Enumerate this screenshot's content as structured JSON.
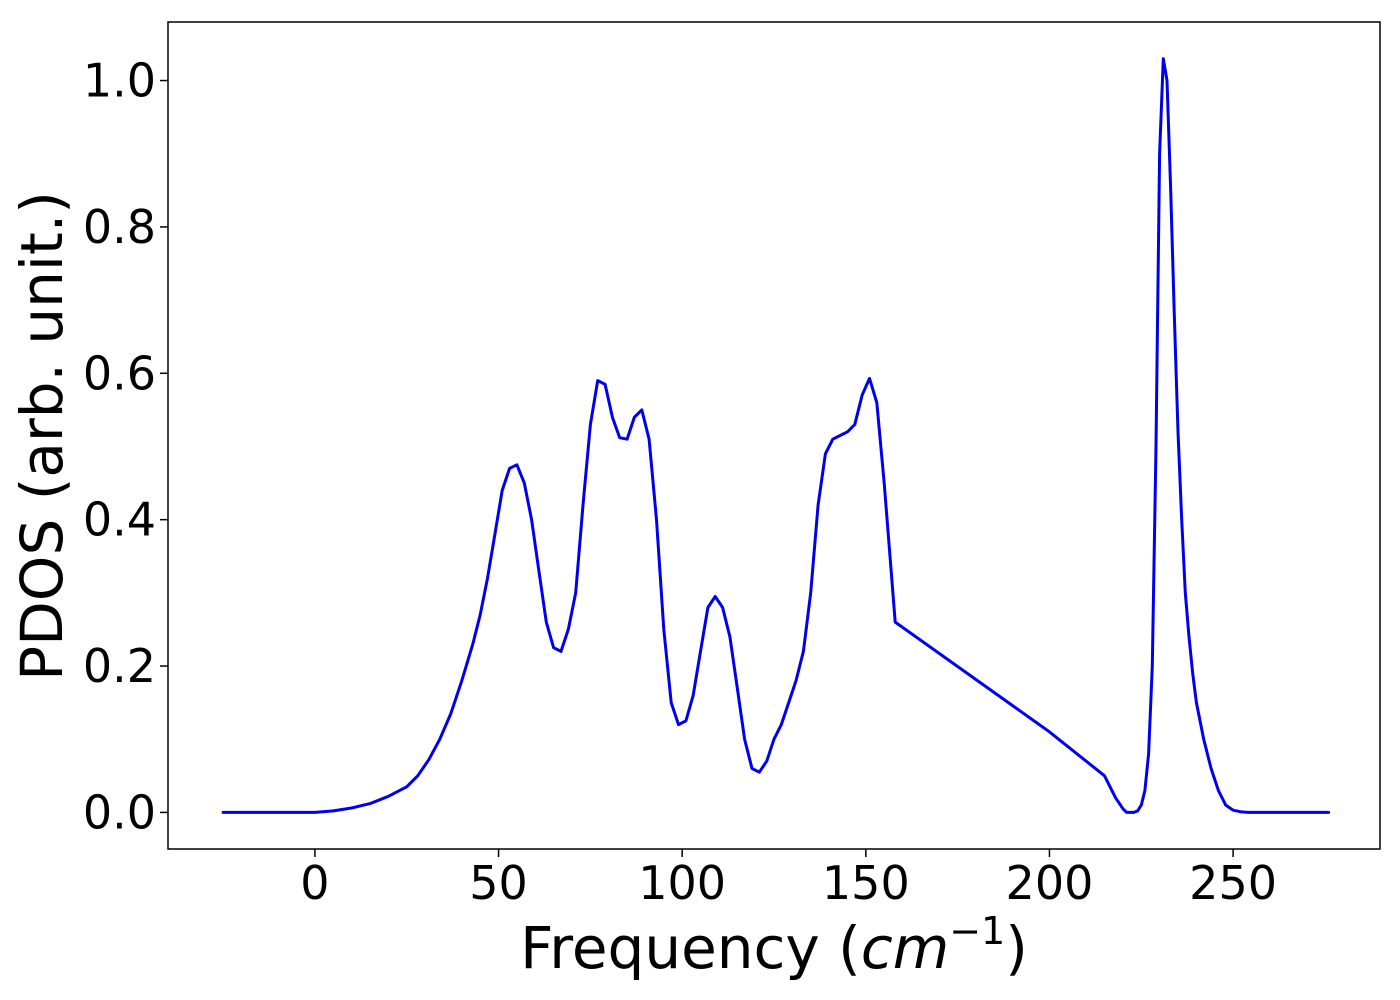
{
  "chart_data": {
    "type": "line",
    "title": "",
    "xlabel_text": "Frequency (",
    "xlabel_unit_base": "cm",
    "xlabel_unit_exp": "−1",
    "xlabel_close": ")",
    "ylabel": "PDOS (arb. unit.)",
    "xlim": [
      -40,
      290
    ],
    "ylim": [
      -0.05,
      1.08
    ],
    "xticks": [
      0,
      50,
      100,
      150,
      200,
      250
    ],
    "yticks": [
      0.0,
      0.2,
      0.4,
      0.6,
      0.8,
      1.0
    ],
    "xtick_labels": [
      "0",
      "50",
      "100",
      "150",
      "200",
      "250"
    ],
    "ytick_labels": [
      "0.0",
      "0.2",
      "0.4",
      "0.6",
      "0.8",
      "1.0"
    ],
    "grid": false,
    "legend": "none",
    "series": [
      {
        "color": "#0000ee",
        "x": [
          -25,
          0,
          5,
          10,
          15,
          20,
          25,
          28,
          31,
          34,
          37,
          40,
          43,
          45,
          47,
          49,
          51,
          53,
          55,
          57,
          59,
          61,
          63,
          65,
          67,
          69,
          71,
          73,
          75,
          77,
          79,
          81,
          83,
          85,
          87,
          89,
          91,
          93,
          95,
          97,
          99,
          101,
          103,
          105,
          107,
          109,
          111,
          113,
          115,
          117,
          119,
          121,
          123,
          125,
          127,
          129,
          131,
          133,
          135,
          137,
          139,
          141,
          143,
          145,
          147,
          149,
          151,
          153,
          155,
          158,
          200,
          215,
          218,
          220,
          221,
          222,
          223,
          224,
          225,
          226,
          227,
          228,
          229,
          230,
          231,
          232,
          233,
          234,
          235,
          236,
          237,
          238,
          239,
          240,
          242,
          244,
          246,
          248,
          250,
          252,
          254,
          256,
          258,
          260,
          276
        ],
        "y": [
          0,
          0,
          0.002,
          0.006,
          0.012,
          0.022,
          0.035,
          0.05,
          0.072,
          0.1,
          0.135,
          0.18,
          0.23,
          0.27,
          0.32,
          0.38,
          0.44,
          0.47,
          0.475,
          0.45,
          0.4,
          0.33,
          0.26,
          0.225,
          0.22,
          0.25,
          0.3,
          0.42,
          0.53,
          0.59,
          0.585,
          0.54,
          0.512,
          0.51,
          0.54,
          0.55,
          0.51,
          0.4,
          0.25,
          0.15,
          0.12,
          0.125,
          0.16,
          0.22,
          0.28,
          0.295,
          0.28,
          0.24,
          0.17,
          0.1,
          0.06,
          0.055,
          0.07,
          0.1,
          0.12,
          0.15,
          0.18,
          0.22,
          0.3,
          0.42,
          0.49,
          0.51,
          0.515,
          0.52,
          0.53,
          0.57,
          0.593,
          0.56,
          0.45,
          0.26,
          0.11,
          0.05,
          0.02,
          0.005,
          0,
          0,
          0,
          0.002,
          0.01,
          0.03,
          0.08,
          0.2,
          0.5,
          0.9,
          1.03,
          1.0,
          0.85,
          0.68,
          0.52,
          0.4,
          0.3,
          0.24,
          0.19,
          0.15,
          0.1,
          0.06,
          0.03,
          0.01,
          0.003,
          0.001,
          0,
          0,
          0,
          0,
          0
        ]
      }
    ]
  }
}
